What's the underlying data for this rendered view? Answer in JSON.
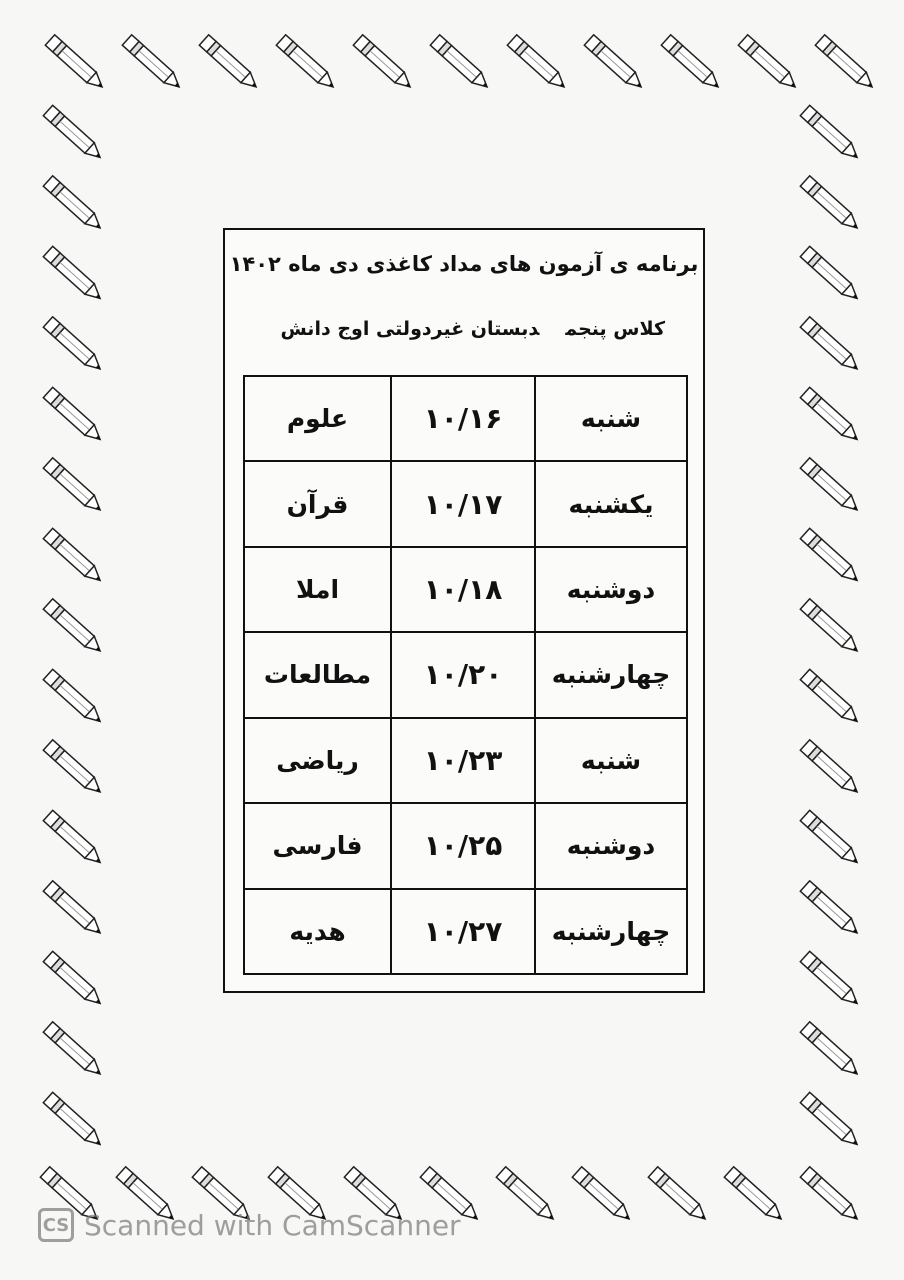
{
  "header": {
    "title": "برنامه ی آزمون های مداد کاغذی دی ماه ۱۴۰۲",
    "class": "کلاس پنجم",
    "school": "دبستان غیردولتی اوج دانش"
  },
  "table": {
    "rows": [
      [
        "شنبه",
        "۱۰/۱۶",
        "علوم"
      ],
      [
        "یکشنبه",
        "۱۰/۱۷",
        "قرآن"
      ],
      [
        "دوشنبه",
        "۱۰/۱۸",
        "املا"
      ],
      [
        "چهارشنبه",
        "۱۰/۲۰",
        "مطالعات"
      ],
      [
        "شنبه",
        "۱۰/۲۳",
        "ریاضی"
      ],
      [
        "دوشنبه",
        "۱۰/۲۵",
        "فارسی"
      ],
      [
        "چهارشنبه",
        "۱۰/۲۷",
        "هدیه"
      ]
    ]
  },
  "watermark": {
    "logo": "CS",
    "text": "Scanned with CamScanner"
  }
}
